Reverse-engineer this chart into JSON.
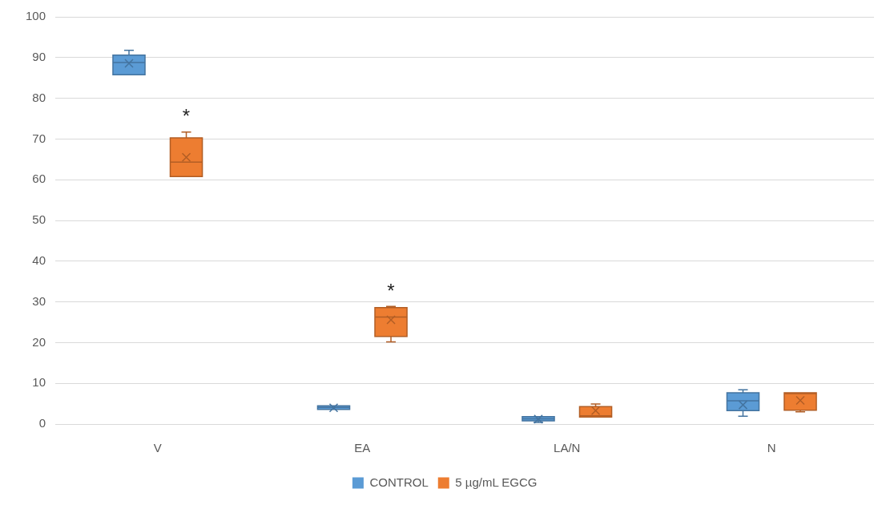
{
  "chart_data": {
    "type": "box",
    "categories": [
      "V",
      "EA",
      "LA/N",
      "N"
    ],
    "series": [
      {
        "name": "CONTROL",
        "color": "#5b9bd5",
        "boxes": [
          {
            "low": 85.8,
            "q1": 85.8,
            "median": 88.8,
            "q3": 90.6,
            "high": 91.8,
            "mean": 88.6
          },
          {
            "low": 3.6,
            "q1": 3.6,
            "median": 4.1,
            "q3": 4.5,
            "high": 4.5,
            "mean": 4.0
          },
          {
            "low": 0.4,
            "q1": 0.8,
            "median": 1.3,
            "q3": 1.8,
            "high": 1.8,
            "mean": 1.2
          },
          {
            "low": 1.9,
            "q1": 3.3,
            "median": 5.7,
            "q3": 7.7,
            "high": 8.4,
            "mean": 4.7
          }
        ]
      },
      {
        "name": "5 µg/mL EGCG",
        "color": "#ed7d31",
        "boxes": [
          {
            "low": 60.8,
            "q1": 60.8,
            "median": 64.3,
            "q3": 70.3,
            "high": 71.7,
            "mean": 65.5
          },
          {
            "low": 20.2,
            "q1": 21.5,
            "median": 26.3,
            "q3": 28.6,
            "high": 28.9,
            "mean": 25.6
          },
          {
            "low": 1.7,
            "q1": 1.7,
            "median": 2.0,
            "q3": 4.3,
            "high": 4.9,
            "mean": 3.3
          },
          {
            "low": 3.0,
            "q1": 3.4,
            "median": 7.5,
            "q3": 7.7,
            "high": 7.7,
            "mean": 5.8
          }
        ]
      }
    ],
    "ylim": [
      0,
      100
    ],
    "yticks": [
      0,
      10,
      20,
      30,
      40,
      50,
      60,
      70,
      80,
      90,
      100
    ],
    "grid": "y",
    "legend": "bottom",
    "annotations": [
      "*",
      "*"
    ]
  }
}
